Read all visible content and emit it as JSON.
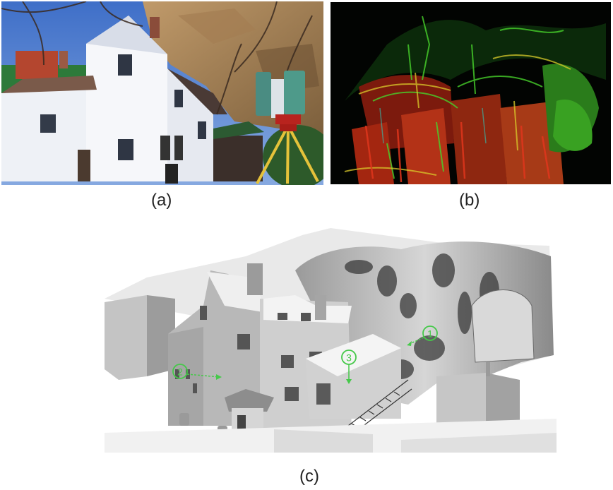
{
  "captions": {
    "a": "(a)",
    "b": "(b)",
    "c": "(c)"
  },
  "markers": [
    {
      "id": "1"
    },
    {
      "id": "2"
    },
    {
      "id": "3"
    }
  ],
  "colors": {
    "marker": "#46c94a",
    "sky": "#4f7fd3",
    "pointcloud_red": "#e0361c",
    "pointcloud_green": "#47d22b",
    "pointcloud_yellow": "#d9c92a"
  },
  "icons": [
    "laser-scanner-icon",
    "tripod-icon"
  ]
}
